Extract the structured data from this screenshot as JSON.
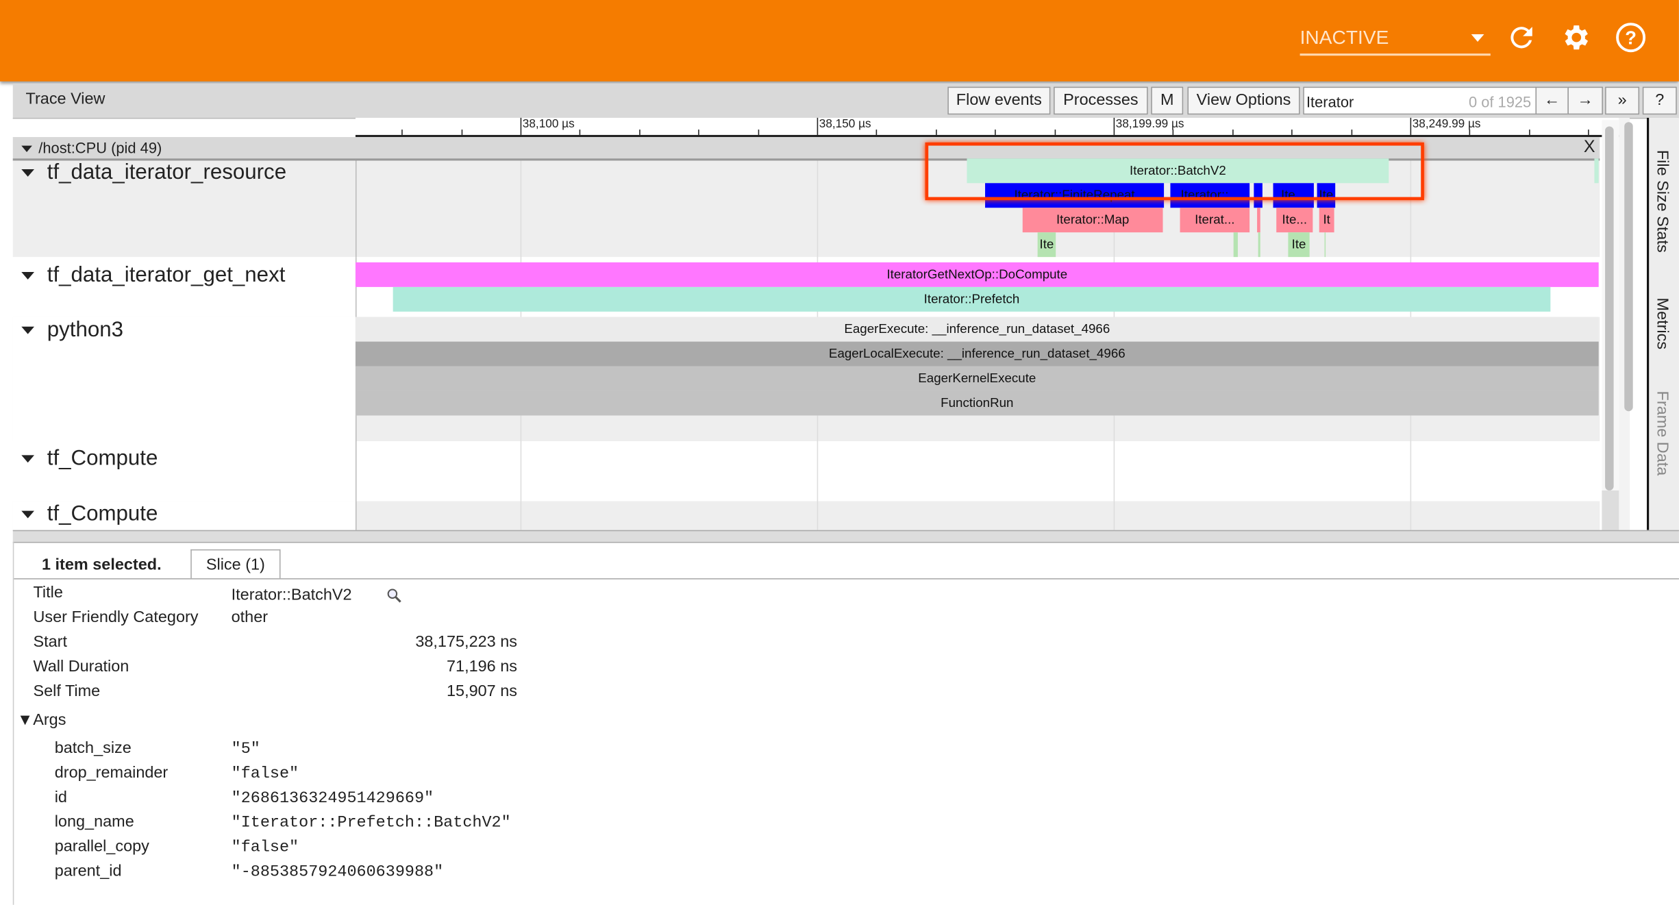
{
  "header": {
    "status_select": "INACTIVE",
    "icons": [
      "refresh-icon",
      "settings-gear-icon",
      "help-icon"
    ],
    "color": "#f57c00"
  },
  "toolbar": {
    "title": "Trace View",
    "flow_events": "Flow events",
    "processes": "Processes",
    "m": "M",
    "view_options": "View Options",
    "search_value": "Iterator",
    "search_count": "0 of 1925",
    "prev": "←",
    "next": "→",
    "more": "»",
    "help": "?"
  },
  "ruler": {
    "ticks": [
      "38,100 µs",
      "38,150 µs",
      "38,199.99 µs",
      "38,249.99 µs"
    ]
  },
  "process": {
    "label": "/host:CPU (pid 49)",
    "close": "X"
  },
  "threads": [
    "tf_data_iterator_resource",
    "tf_data_iterator_get_next",
    "python3",
    "tf_Compute",
    "tf_Compute"
  ],
  "slices": {
    "batch": "Iterator::BatchV2",
    "blue": [
      "Iterator::FiniteRepeat",
      "Iterator::...",
      "",
      "Ite...",
      "Ite"
    ],
    "pink": [
      "Iterator::Map",
      "Iterat...",
      "",
      "Ite...",
      "It"
    ],
    "green": [
      "Ite",
      "",
      "",
      "Ite",
      ""
    ],
    "getnext": "IteratorGetNextOp::DoCompute",
    "prefetch": "Iterator::Prefetch",
    "eager": "EagerExecute: __inference_run_dataset_4966",
    "eagerlocal": "EagerLocalExecute: __inference_run_dataset_4966",
    "kernel": "EagerKernelExecute",
    "funcrun": "FunctionRun"
  },
  "side_tabs": [
    "File Size Stats",
    "Metrics",
    "Frame Data"
  ],
  "details": {
    "selected": "1 item selected.",
    "tab": "Slice (1)",
    "fields": [
      {
        "k": "Title",
        "v": "Iterator::BatchV2"
      },
      {
        "k": "User Friendly Category",
        "v": "other"
      },
      {
        "k": "Start",
        "v": "38,175,223 ns"
      },
      {
        "k": "Wall Duration",
        "v": "71,196 ns"
      },
      {
        "k": "Self Time",
        "v": "15,907 ns"
      }
    ],
    "args_label": "▼Args",
    "args": [
      {
        "k": "batch_size",
        "v": "\"5\""
      },
      {
        "k": "drop_remainder",
        "v": "\"false\""
      },
      {
        "k": "id",
        "v": "\"2686136324951429669\""
      },
      {
        "k": "long_name",
        "v": "\"Iterator::Prefetch::BatchV2\""
      },
      {
        "k": "parallel_copy",
        "v": "\"false\""
      },
      {
        "k": "parent_id",
        "v": "\"-8853857924060639988\""
      }
    ]
  }
}
